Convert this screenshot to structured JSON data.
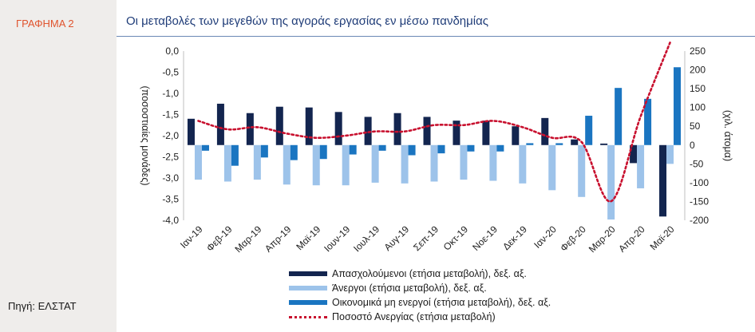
{
  "figure_label": "ΓΡΑΦΗΜΑ 2",
  "source": "Πηγή: ΕΛΣΤΑΤ",
  "chart_data": {
    "type": "bar",
    "title": "Οι μεταβολές των μεγεθών της αγοράς εργασίας εν μέσω πανδημίας",
    "ylabel_left": "(ποσοστιαίες μονάδες)",
    "ylabel_right": "(χιλ. άτομα)",
    "ylim_left": [
      -4.0,
      0.0
    ],
    "ylim_right": [
      -200,
      250
    ],
    "left_ticks": [
      "0,0",
      "-0,5",
      "-1,0",
      "-1,5",
      "-2,0",
      "-2,5",
      "-3,0",
      "-3,5",
      "-4,0"
    ],
    "right_ticks": [
      "250",
      "200",
      "150",
      "100",
      "50",
      "0",
      "-50",
      "-100",
      "-150",
      "-200"
    ],
    "categories": [
      "Ιαν-19",
      "Φεβ-19",
      "Μαρ-19",
      "Απρ-19",
      "Μαϊ-19",
      "Ιουν-19",
      "Ιουλ-19",
      "Αυγ-19",
      "Σεπ-19",
      "Οκτ-19",
      "Νοε-19",
      "Δεκ-19",
      "Ιαν-20",
      "Φεβ-20",
      "Μαρ-20",
      "Απρ-20",
      "Μαϊ-20"
    ],
    "series": [
      {
        "name": "Απασχολούμενοι  (ετήσια μεταβολή), δεξ. αξ.",
        "color": "#13254f",
        "type": "bar",
        "values": [
          70,
          110,
          85,
          102,
          100,
          88,
          75,
          85,
          75,
          65,
          65,
          50,
          72,
          15,
          4,
          -48,
          -190
        ]
      },
      {
        "name": "Άνεργοι  (ετήσια μεταβολή), δεξ. αξ.",
        "color": "#9dc3ea",
        "type": "bar",
        "values": [
          -92,
          -97,
          -92,
          -105,
          -107,
          -107,
          -100,
          -102,
          -97,
          -92,
          -95,
          -102,
          -120,
          -138,
          -198,
          -115,
          -50
        ]
      },
      {
        "name": "Οικονομικά μη ενεργοί  (ετήσια μεταβολή), δεξ. αξ.",
        "color": "#1a75c1",
        "type": "bar",
        "values": [
          -15,
          -55,
          -33,
          -40,
          -37,
          -25,
          -15,
          -27,
          -22,
          -17,
          -17,
          5,
          5,
          78,
          152,
          123,
          207
        ]
      },
      {
        "name": "Ποσοστό Ανεργίας  (ετήσια μεταβολή)",
        "color": "#c8102e",
        "type": "line",
        "values": [
          -1.65,
          -1.85,
          -1.8,
          -1.95,
          -2.05,
          -2.0,
          -1.9,
          -1.9,
          -1.75,
          -1.75,
          -1.65,
          -1.8,
          -2.05,
          -2.15,
          -3.55,
          -1.55,
          0.2
        ]
      }
    ]
  }
}
